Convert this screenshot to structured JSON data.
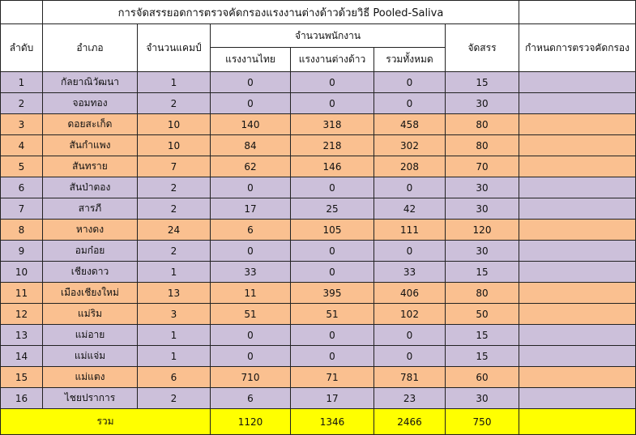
{
  "title": "การจัดสรรยอดการตรวจคัดกรองแรงงานต่างด้าวด้วยวิธี Pooled-Saliva",
  "headers": {
    "order": "ลำดับ",
    "district": "อำเภอ",
    "camps": "จำนวนแคมป์",
    "employees": "จำนวนพนักงาน",
    "thai": "แรงงานไทย",
    "foreign": "แรงงานต่างด้าว",
    "total": "รวมทั้งหมด",
    "allocation": "จัดสรร",
    "schedule": "กำหนดการตรวจคัดกรอง"
  },
  "colors": {
    "purple": "#ccc0da",
    "orange": "#fac090",
    "total": "#ffff00"
  },
  "rows": [
    {
      "no": "1",
      "district": "กัลยาณิวัฒนา",
      "camps": "1",
      "thai": "0",
      "foreign": "0",
      "total": "0",
      "alloc": "15",
      "schedule": "",
      "color": "purple"
    },
    {
      "no": "2",
      "district": "จอมทอง",
      "camps": "2",
      "thai": "0",
      "foreign": "0",
      "total": "0",
      "alloc": "30",
      "schedule": "",
      "color": "purple"
    },
    {
      "no": "3",
      "district": "ดอยสะเก็ด",
      "camps": "10",
      "thai": "140",
      "foreign": "318",
      "total": "458",
      "alloc": "80",
      "schedule": "",
      "color": "orange"
    },
    {
      "no": "4",
      "district": "สันกำแพง",
      "camps": "10",
      "thai": "84",
      "foreign": "218",
      "total": "302",
      "alloc": "80",
      "schedule": "",
      "color": "orange"
    },
    {
      "no": "5",
      "district": "สันทราย",
      "camps": "7",
      "thai": "62",
      "foreign": "146",
      "total": "208",
      "alloc": "70",
      "schedule": "",
      "color": "orange"
    },
    {
      "no": "6",
      "district": "สันป่าตอง",
      "camps": "2",
      "thai": "0",
      "foreign": "0",
      "total": "0",
      "alloc": "30",
      "schedule": "",
      "color": "purple"
    },
    {
      "no": "7",
      "district": "สารภี",
      "camps": "2",
      "thai": "17",
      "foreign": "25",
      "total": "42",
      "alloc": "30",
      "schedule": "",
      "color": "purple"
    },
    {
      "no": "8",
      "district": "หางดง",
      "camps": "24",
      "thai": "6",
      "foreign": "105",
      "total": "111",
      "alloc": "120",
      "schedule": "",
      "color": "orange"
    },
    {
      "no": "9",
      "district": "อมก๋อย",
      "camps": "2",
      "thai": "0",
      "foreign": "0",
      "total": "0",
      "alloc": "30",
      "schedule": "",
      "color": "purple"
    },
    {
      "no": "10",
      "district": "เชียงดาว",
      "camps": "1",
      "thai": "33",
      "foreign": "0",
      "total": "33",
      "alloc": "15",
      "schedule": "",
      "color": "purple"
    },
    {
      "no": "11",
      "district": "เมืองเชียงใหม่",
      "camps": "13",
      "thai": "11",
      "foreign": "395",
      "total": "406",
      "alloc": "80",
      "schedule": "",
      "color": "orange"
    },
    {
      "no": "12",
      "district": "แม่ริม",
      "camps": "3",
      "thai": "51",
      "foreign": "51",
      "total": "102",
      "alloc": "50",
      "schedule": "",
      "color": "orange"
    },
    {
      "no": "13",
      "district": "แม่อาย",
      "camps": "1",
      "thai": "0",
      "foreign": "0",
      "total": "0",
      "alloc": "15",
      "schedule": "",
      "color": "purple"
    },
    {
      "no": "14",
      "district": "แม่แจ่ม",
      "camps": "1",
      "thai": "0",
      "foreign": "0",
      "total": "0",
      "alloc": "15",
      "schedule": "",
      "color": "purple"
    },
    {
      "no": "15",
      "district": "แม่แตง",
      "camps": "6",
      "thai": "710",
      "foreign": "71",
      "total": "781",
      "alloc": "60",
      "schedule": "",
      "color": "orange"
    },
    {
      "no": "16",
      "district": "ไชยปราการ",
      "camps": "2",
      "thai": "6",
      "foreign": "17",
      "total": "23",
      "alloc": "30",
      "schedule": "",
      "color": "purple"
    }
  ],
  "totals": {
    "label": "รวม",
    "thai": "1120",
    "foreign": "1346",
    "total": "2466",
    "alloc": "750",
    "schedule": ""
  }
}
